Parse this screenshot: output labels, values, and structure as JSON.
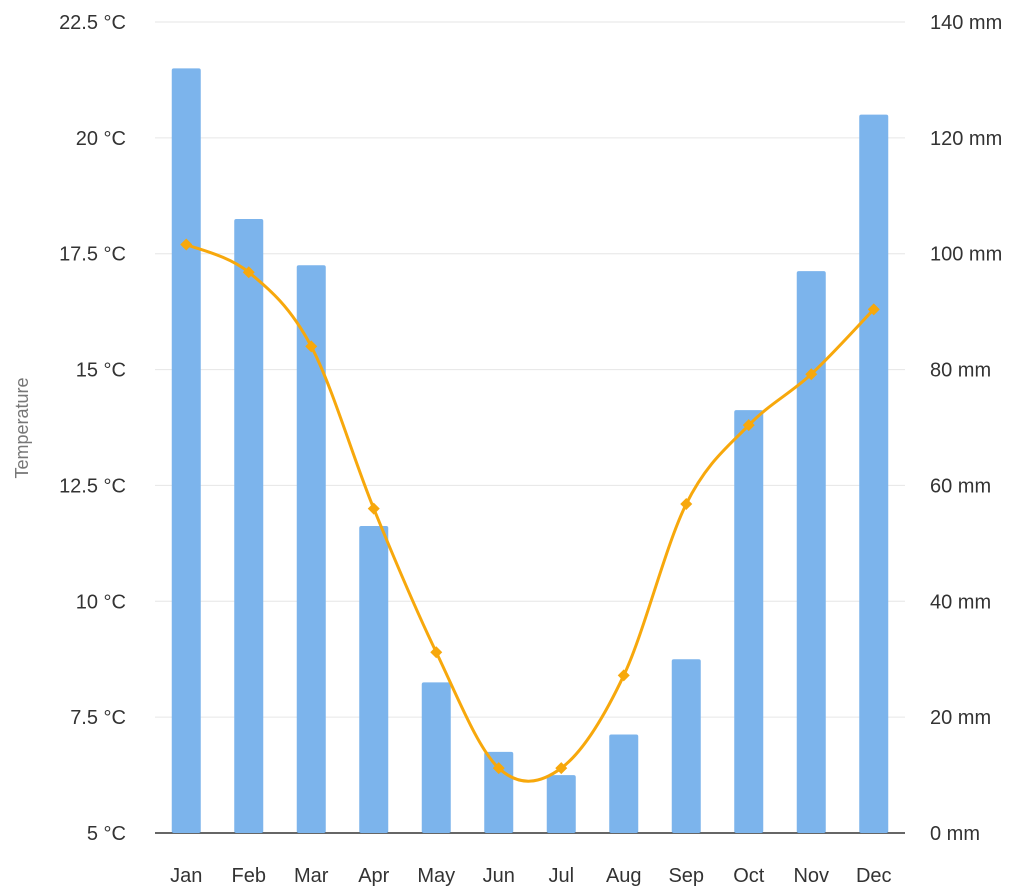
{
  "chart_data": {
    "type": "bar",
    "categories": [
      "Jan",
      "Feb",
      "Mar",
      "Apr",
      "May",
      "Jun",
      "Jul",
      "Aug",
      "Sep",
      "Oct",
      "Nov",
      "Dec"
    ],
    "series": [
      {
        "kind": "bar",
        "axis": "right",
        "color": "#7cb4ec",
        "values": [
          132,
          106,
          98,
          53,
          26,
          14,
          10,
          17,
          30,
          73,
          97,
          124
        ]
      },
      {
        "kind": "line",
        "axis": "left",
        "color": "#f7a80c",
        "values": [
          17.7,
          17.1,
          15.5,
          12.0,
          8.9,
          6.4,
          6.4,
          8.4,
          12.1,
          13.8,
          14.9,
          16.3
        ]
      }
    ],
    "ylabel": "Temperature",
    "ylim_left": [
      5,
      22.5
    ],
    "ylim_right": [
      0,
      140
    ],
    "yticks_left": [
      "5 °C",
      "7.5 °C",
      "10 °C",
      "12.5 °C",
      "15 °C",
      "17.5 °C",
      "20 °C",
      "22.5 °C"
    ],
    "yticks_right": [
      "0 mm",
      "20 mm",
      "40 mm",
      "60 mm",
      "80 mm",
      "100 mm",
      "120 mm",
      "140 mm"
    ],
    "grid": true,
    "legend": "none"
  }
}
